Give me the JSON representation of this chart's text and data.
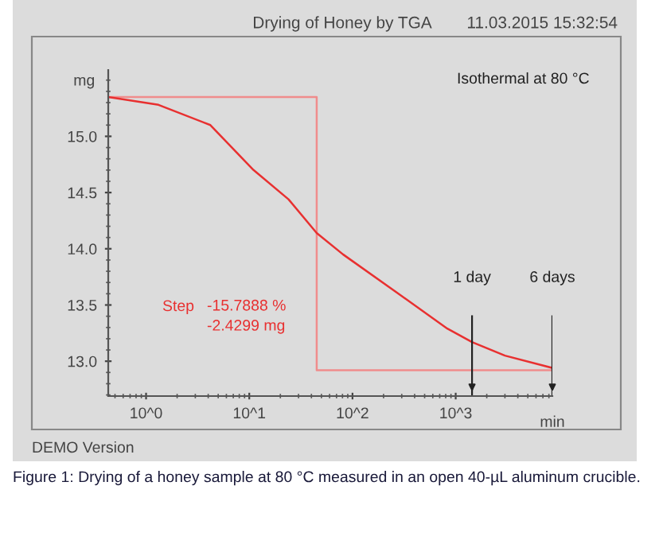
{
  "chart_data": {
    "type": "line",
    "title": "Drying of Honey by TGA",
    "subtitle": "11.03.2015 15:32:54",
    "xlabel": "min",
    "ylabel": "mg",
    "log": "x",
    "xlim": [
      0.43,
      8640
    ],
    "ylim": [
      12.69,
      15.59
    ],
    "xticks": [
      {
        "value": 1,
        "label": "10^0"
      },
      {
        "value": 10,
        "label": "10^1"
      },
      {
        "value": 100,
        "label": "10^2"
      },
      {
        "value": 1000,
        "label": "10^3"
      }
    ],
    "yticks": [
      {
        "value": 13,
        "label": "13.0"
      },
      {
        "value": 13.5,
        "label": "13.5"
      },
      {
        "value": 14,
        "label": "14.0"
      },
      {
        "value": 14.5,
        "label": "14.5"
      },
      {
        "value": 15,
        "label": "15.0"
      }
    ],
    "grid": false,
    "legend": false,
    "ref_lines": [
      {
        "axis": "x",
        "value": 1440,
        "label": "1 day",
        "color": "#222222"
      },
      {
        "axis": "x",
        "value": 8640,
        "label": "6 days",
        "color": "#222222"
      }
    ],
    "series": [
      {
        "color": "#f08c8c",
        "x": [
          0.43,
          45,
          45,
          8640
        ],
        "values": [
          15.35,
          15.35,
          12.92,
          12.92
        ]
      },
      {
        "color": "#e83030",
        "x": [
          0.43,
          1.32,
          4.2,
          11,
          24,
          45,
          81,
          260,
          830,
          1440,
          3000,
          8640
        ],
        "values": [
          15.35,
          15.28,
          15.1,
          14.7,
          14.44,
          14.14,
          13.95,
          13.62,
          13.29,
          13.17,
          13.05,
          12.94
        ]
      }
    ],
    "annotations": [
      "Isothermal at 80 °C",
      "Step",
      "-15.7888 %\n-2.4299 mg",
      "DEMO Version",
      "Figure 1: Drying of a honey sample at 80 °C measured in an open 40-µL aluminum crucible."
    ]
  }
}
